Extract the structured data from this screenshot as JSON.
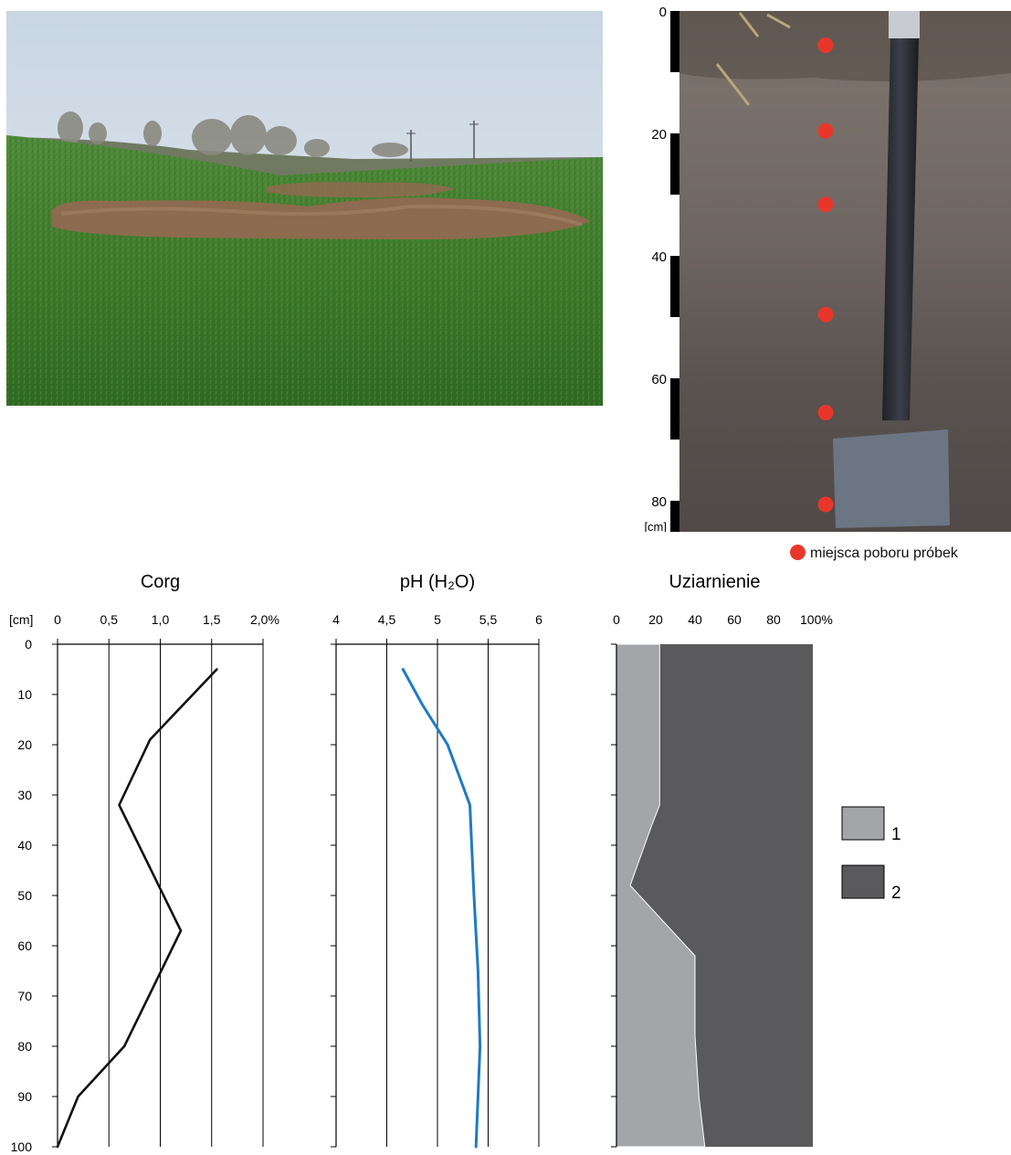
{
  "photos": {
    "landscape": {
      "icon": "field-landscape-photo"
    },
    "soil_profile": {
      "icon": "soil-profile-photo",
      "scale_ticks": [
        "0",
        "20",
        "40",
        "60",
        "80"
      ],
      "scale_unit": "[cm]",
      "sample_depths_cm": [
        5,
        19,
        31,
        49,
        65,
        80
      ],
      "sample_marker_color": "#e8372a",
      "legend_text": "miejsca poboru próbek"
    }
  },
  "depth_axis": {
    "unit": "[cm]",
    "ticks": [
      "0",
      "10",
      "20",
      "30",
      "40",
      "50",
      "60",
      "70",
      "80",
      "90",
      "100"
    ]
  },
  "chart_data": [
    {
      "type": "line",
      "title": "Corg",
      "x_ticks": [
        "0",
        "0,5",
        "1,0",
        "1,5",
        "2,0%"
      ],
      "xlim": [
        0,
        2.0
      ],
      "ylim": [
        0,
        100
      ],
      "y_inverted": true,
      "grid": "vertical",
      "color": "#111111",
      "x": [
        1.55,
        0.9,
        0.6,
        1.2,
        0.65,
        0.2,
        0.0
      ],
      "y": [
        5,
        19,
        32,
        57,
        80,
        90,
        100
      ]
    },
    {
      "type": "line",
      "title": "pH (H₂O)",
      "x_ticks": [
        "4",
        "4,5",
        "5",
        "5,5",
        "6"
      ],
      "xlim": [
        4,
        6
      ],
      "ylim": [
        0,
        100
      ],
      "y_inverted": true,
      "grid": "vertical",
      "color": "#1f7ac4",
      "x": [
        4.66,
        4.85,
        5.1,
        5.32,
        5.36,
        5.4,
        5.42,
        5.38
      ],
      "y": [
        5,
        12,
        20,
        32,
        50,
        65,
        80,
        100
      ]
    },
    {
      "type": "area",
      "title": "Uziarnienie",
      "x_ticks": [
        "0",
        "20",
        "40",
        "60",
        "80",
        "100%"
      ],
      "xlim": [
        0,
        100
      ],
      "ylim": [
        0,
        100
      ],
      "y_inverted": true,
      "stacked": true,
      "series": [
        {
          "name": "1",
          "color": "#a3a5a8",
          "depth": [
            0,
            32,
            36,
            48,
            62,
            78,
            90,
            100
          ],
          "values": [
            22,
            22,
            18,
            7,
            40,
            40,
            42,
            45
          ]
        },
        {
          "name": "2",
          "color": "#5a595c",
          "depth": [
            0,
            32,
            36,
            48,
            62,
            78,
            90,
            100
          ],
          "values": [
            78,
            78,
            82,
            93,
            60,
            60,
            58,
            55
          ]
        }
      ],
      "legend": "right"
    }
  ]
}
